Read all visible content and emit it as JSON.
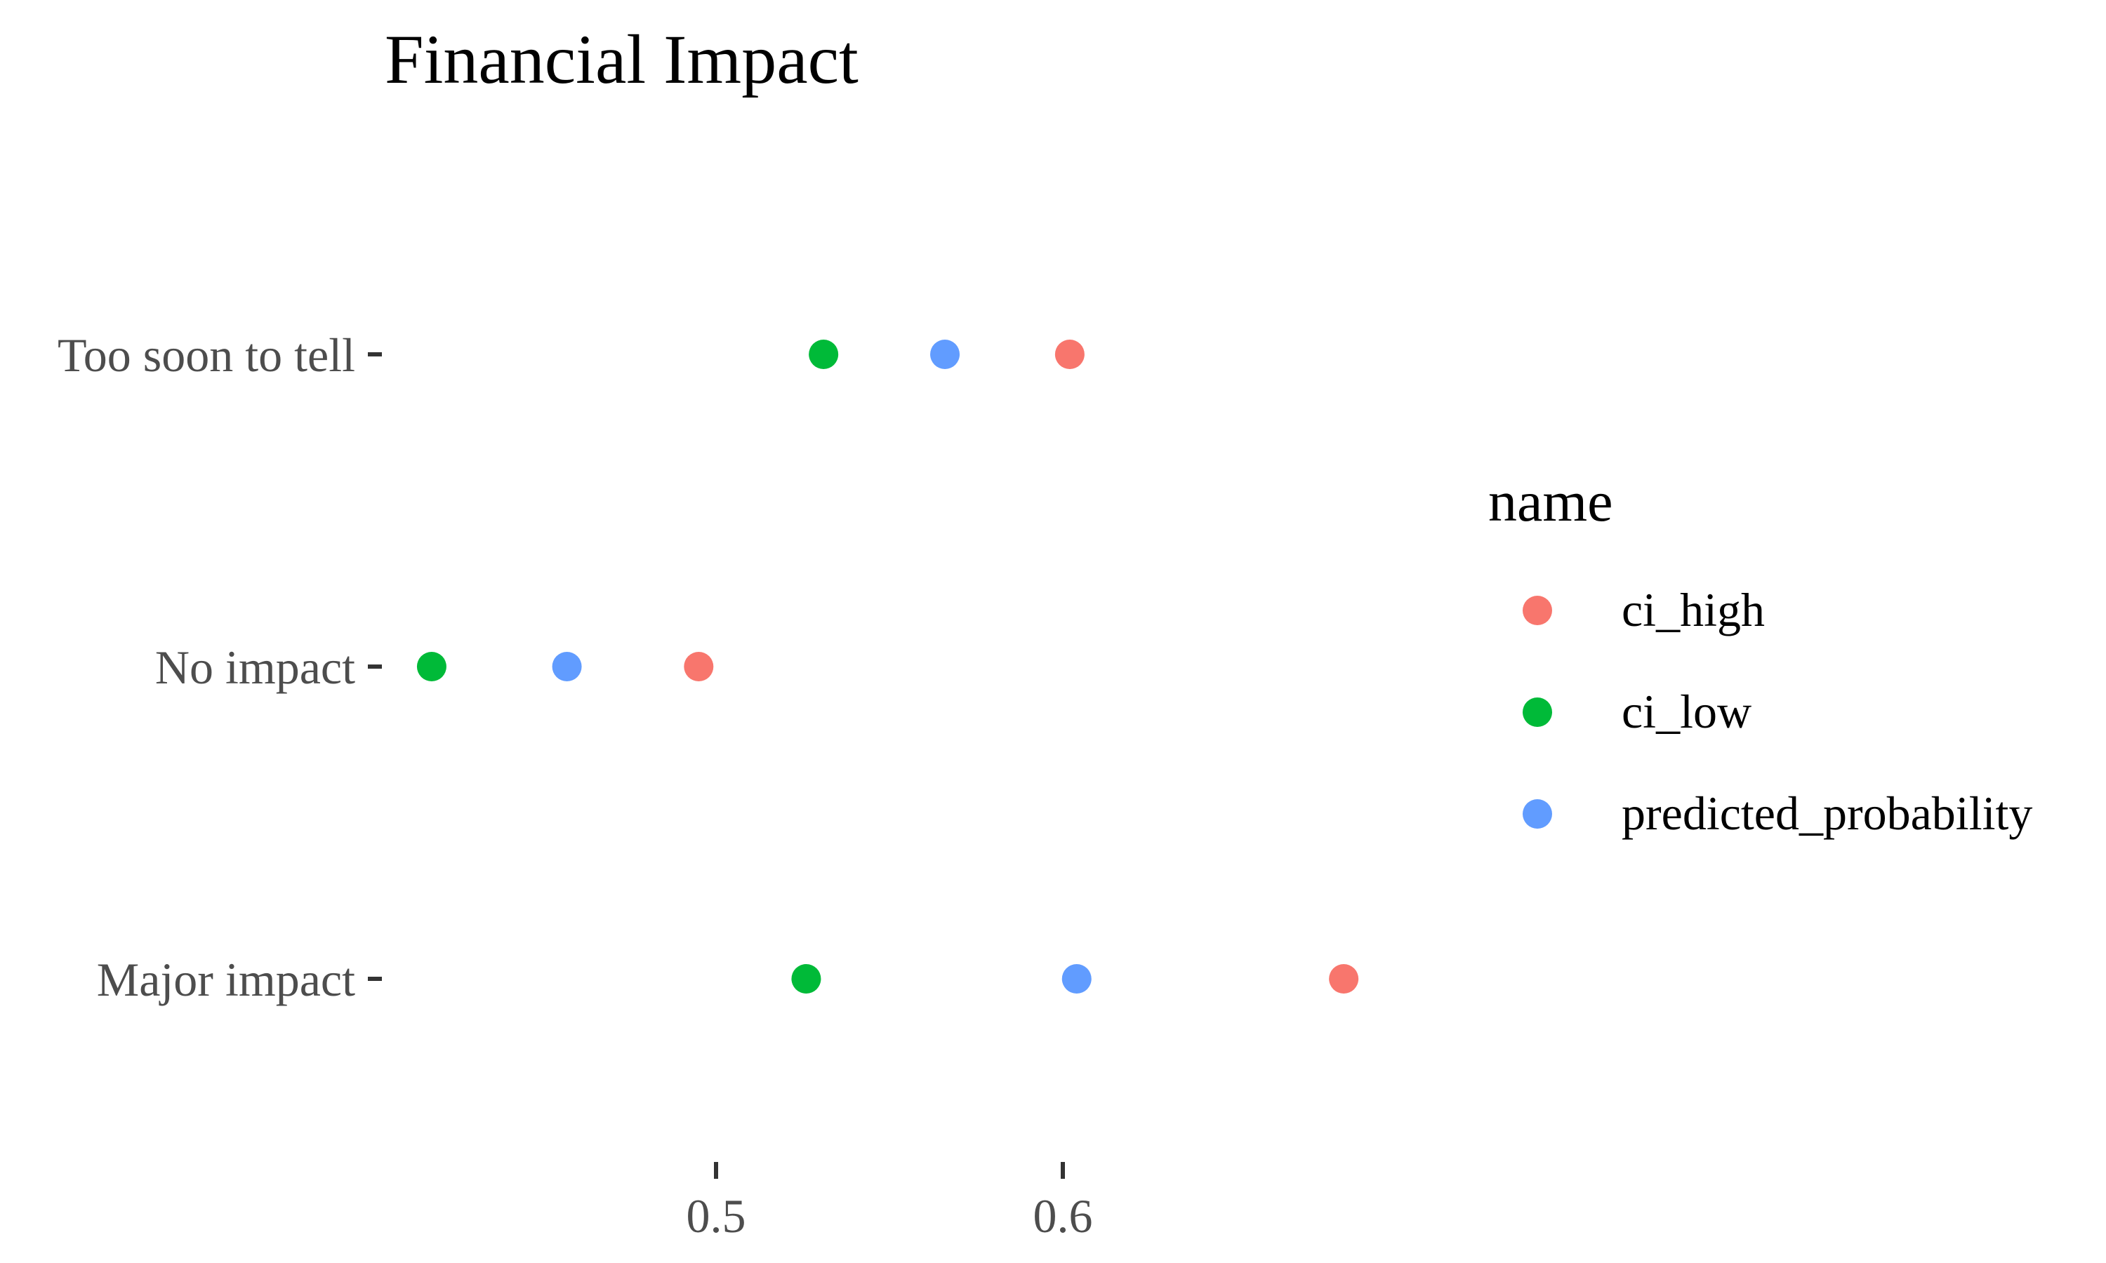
{
  "chart_data": {
    "type": "scatter",
    "title": "Financial Impact",
    "xlabel": "",
    "ylabel": "",
    "categories": [
      "Too soon to tell",
      "No impact",
      "Major impact"
    ],
    "x_ticks": [
      "0.5",
      "0.6"
    ],
    "x_tick_values": [
      0.5,
      0.6
    ],
    "xlim": [
      0.4,
      0.7
    ],
    "grid": false,
    "legend": {
      "title": "name",
      "position": "right"
    },
    "series": [
      {
        "name": "ci_high",
        "color": "#F8766D",
        "values": [
          0.602,
          0.495,
          0.681
        ]
      },
      {
        "name": "ci_low",
        "color": "#00BA38",
        "values": [
          0.531,
          0.418,
          0.526
        ]
      },
      {
        "name": "predicted_probability",
        "color": "#619CFF",
        "values": [
          0.566,
          0.457,
          0.604
        ]
      }
    ]
  }
}
